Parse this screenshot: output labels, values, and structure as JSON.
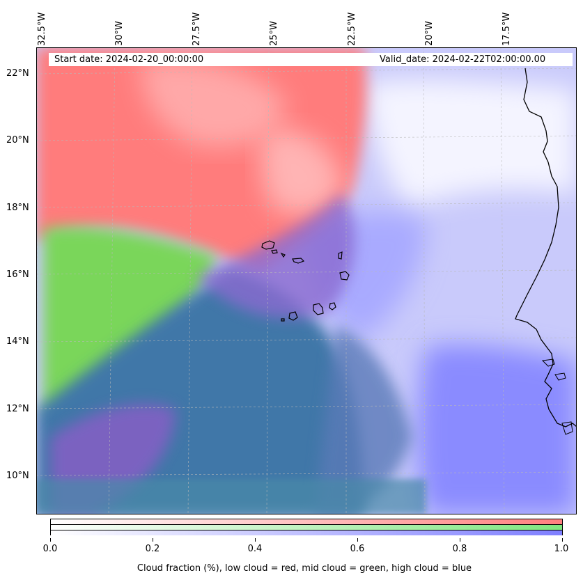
{
  "map": {
    "start_date_label": "Start date: 2024-02-20_00:00:00",
    "valid_date_label": "Valid_date: 2024-02-22T02:00:00.00",
    "longitude_labels": [
      "32.5°W",
      "30°W",
      "27.5°W",
      "25°W",
      "22.5°W",
      "20°W",
      "17.5°W"
    ],
    "latitude_labels": [
      "22°N",
      "20°N",
      "18°N",
      "16°N",
      "14°N",
      "12°N",
      "10°N"
    ],
    "extent": {
      "lon_min": -32.6,
      "lon_max": -15.8,
      "lat_min": 8.8,
      "lat_max": 22.8
    },
    "layers": [
      {
        "name": "low cloud",
        "color": "#ff7f7f"
      },
      {
        "name": "mid cloud",
        "color": "#7fe67f"
      },
      {
        "name": "high cloud",
        "color": "#7f7fff"
      }
    ]
  },
  "colorbar": {
    "tick_labels": [
      "0.0",
      "0.2",
      "0.4",
      "0.6",
      "0.8",
      "1.0"
    ],
    "range": [
      0.0,
      1.0
    ],
    "caption": "Cloud fraction (%), low cloud = red, mid cloud = green, high cloud = blue",
    "bars": [
      {
        "name": "low",
        "color": "#ff8080"
      },
      {
        "name": "mid",
        "color": "#80ee80"
      },
      {
        "name": "high",
        "color": "#8080ff"
      }
    ]
  }
}
